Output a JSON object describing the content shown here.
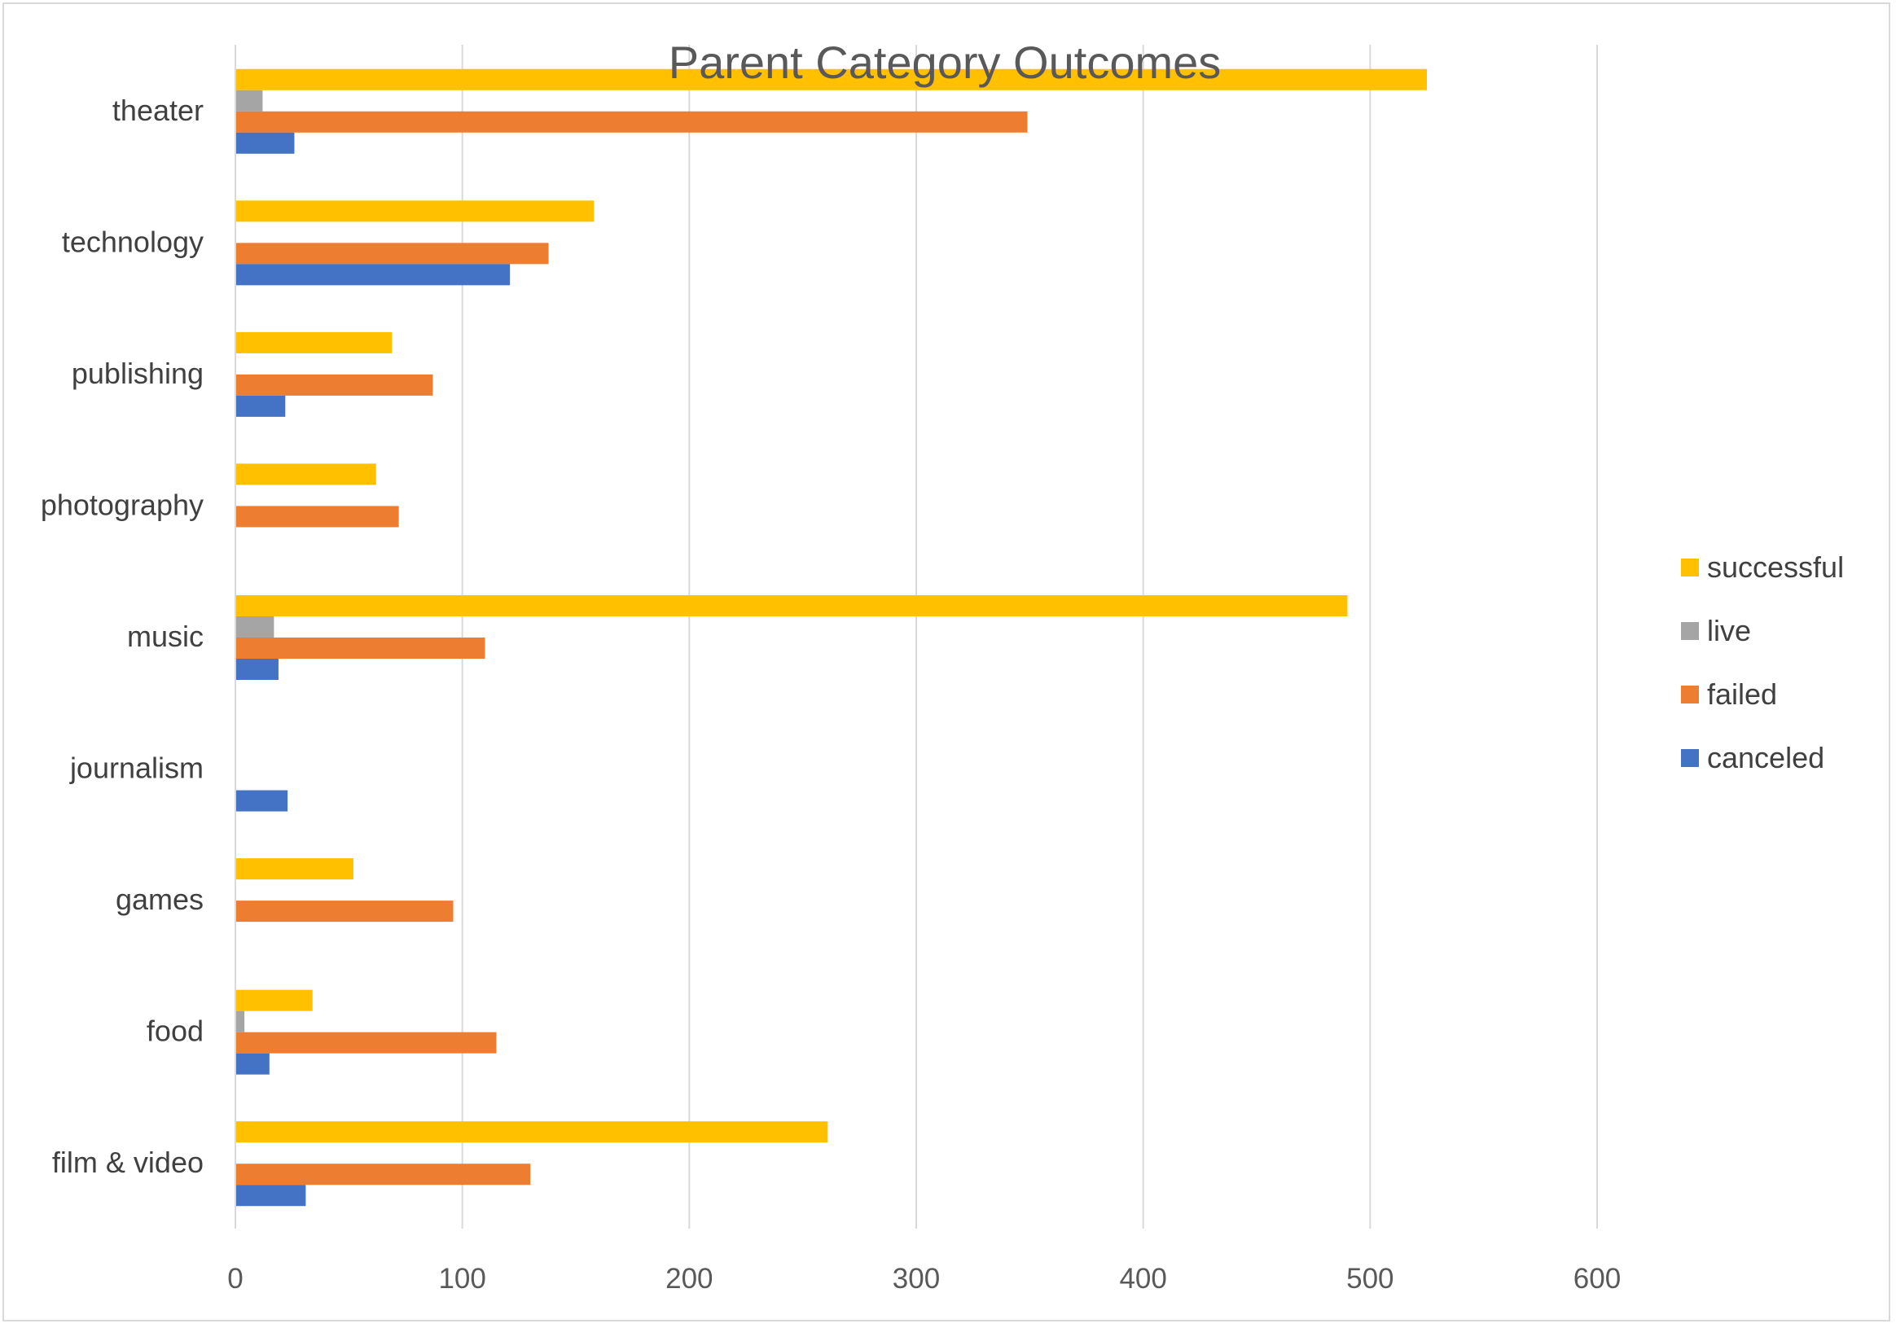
{
  "chart_data": {
    "type": "bar",
    "orientation": "horizontal",
    "title": "Parent Category Outcomes",
    "xlabel": "",
    "ylabel": "",
    "xlim": [
      0,
      600
    ],
    "x_ticks": [
      0,
      100,
      200,
      300,
      400,
      500,
      600
    ],
    "grid": true,
    "legend_position": "right",
    "categories": [
      "theater",
      "technology",
      "publishing",
      "photography",
      "music",
      "journalism",
      "games",
      "food",
      "film & video"
    ],
    "series": [
      {
        "name": "successful",
        "color": "#FFC000",
        "values": [
          525,
          158,
          69,
          62,
          490,
          0,
          52,
          34,
          261
        ]
      },
      {
        "name": "live",
        "color": "#A5A5A5",
        "values": [
          12,
          0,
          0,
          0,
          17,
          0,
          0,
          4,
          0
        ]
      },
      {
        "name": "failed",
        "color": "#ED7D31",
        "values": [
          349,
          138,
          87,
          72,
          110,
          0,
          96,
          115,
          130
        ]
      },
      {
        "name": "canceled",
        "color": "#4472C4",
        "values": [
          26,
          121,
          22,
          0,
          19,
          23,
          0,
          15,
          31
        ]
      }
    ],
    "legend": [
      "successful",
      "live",
      "failed",
      "canceled"
    ]
  }
}
